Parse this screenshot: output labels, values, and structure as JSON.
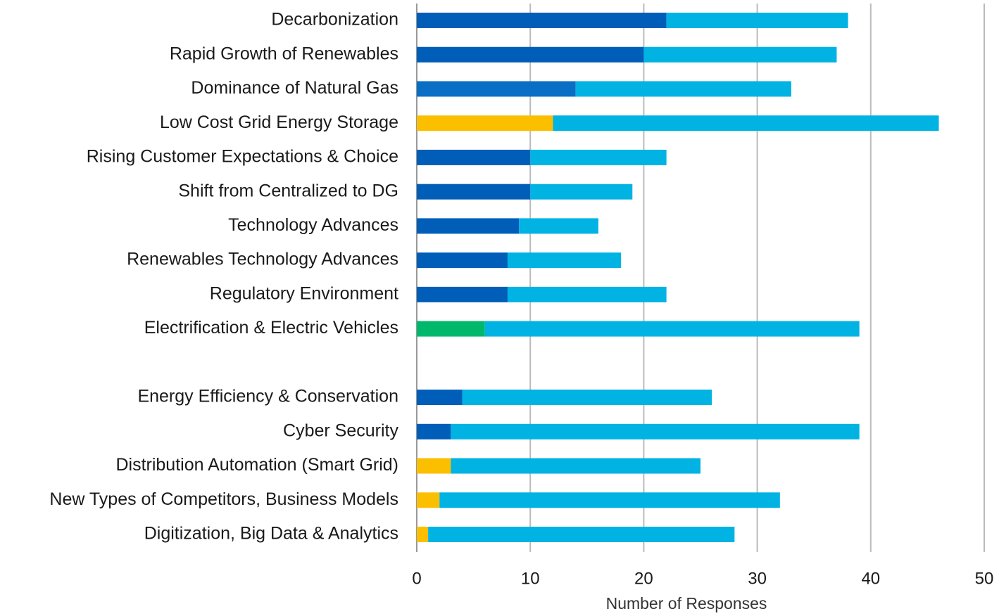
{
  "chart_data": {
    "type": "stacked_barh",
    "categories": [
      "Decarbonization",
      "Rapid Growth of Renewables",
      "Dominance of Natural Gas",
      "Low Cost Grid Energy Storage",
      "Rising Customer Expectations & Choice",
      "Shift from Centralized to DG",
      "Technology Advances",
      "Renewables Technology Advances",
      "Regulatory Environment",
      "Electrification & Electric Vehicles",
      null,
      "Energy Efficiency & Conservation",
      "Cyber Security",
      "Distribution Automation (Smart Grid)",
      "New Types of Competitors, Business Models",
      "Digitization, Big Data & Analytics"
    ],
    "series": [
      {
        "values": [
          22,
          20,
          14,
          12,
          10,
          10,
          9,
          8,
          8,
          6,
          null,
          4,
          3,
          3,
          2,
          1
        ],
        "colors": [
          "#005eb8",
          "#005eb8",
          "#0a6fc4",
          "#fcbf00",
          "#005eb8",
          "#005eb8",
          "#005eb8",
          "#005eb8",
          "#005eb8",
          "#00b86b",
          null,
          "#005eb8",
          "#005eb8",
          "#fcbf00",
          "#fcbf00",
          "#fcbf00"
        ]
      },
      {
        "values": [
          16,
          17,
          19,
          34,
          12,
          9,
          7,
          10,
          14,
          33,
          null,
          22,
          36,
          22,
          30,
          27
        ],
        "color": "#00b3e3"
      }
    ],
    "xlabel": "Number of Responses",
    "xlim": [
      0,
      50
    ],
    "xticks": [
      0,
      10,
      20,
      30,
      40,
      50
    ],
    "grid": true
  }
}
